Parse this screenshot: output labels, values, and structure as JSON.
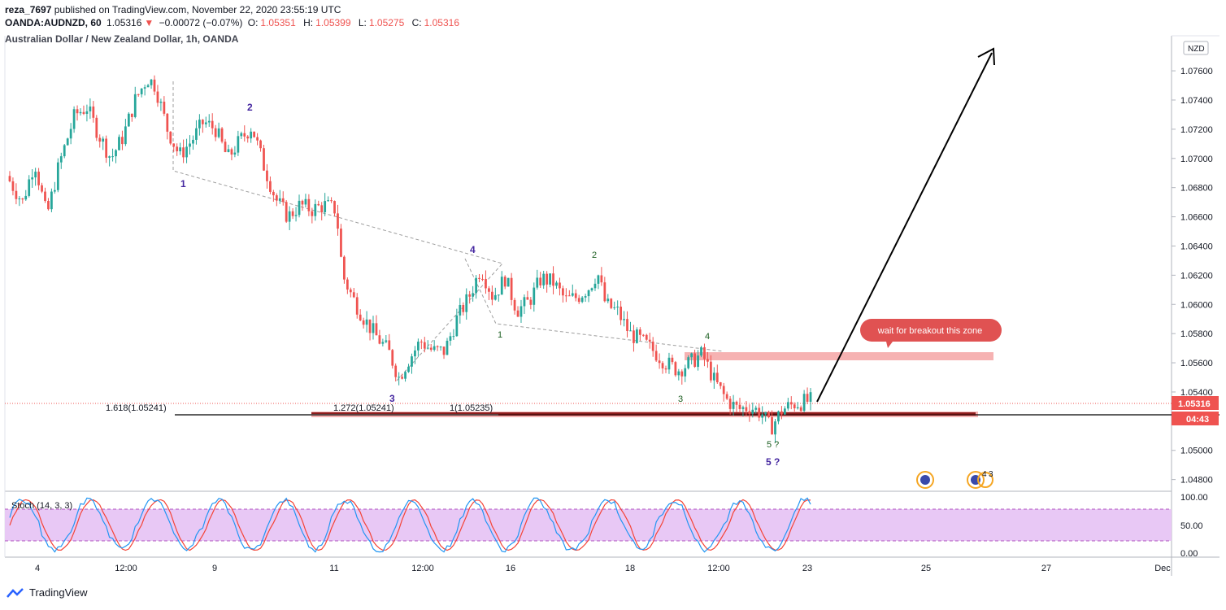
{
  "header": {
    "publisher": "reza_7697",
    "published_text": "published on TradingView.com, November 22, 2020 23:55:19 UTC",
    "symbol": "OANDA:AUDNZD, 60",
    "last": "1.05316",
    "change": "−0.00072 (−0.07%)",
    "o_label": "O:",
    "o": "1.05351",
    "h_label": "H:",
    "h": "1.05399",
    "l_label": "L:",
    "l": "1.05275",
    "c_label": "C:",
    "c": "1.05316",
    "chart_title": "Australian Dollar / New Zealand Dollar, 1h, OANDA"
  },
  "currency_badge": "NZD",
  "footer": {
    "brand": "TradingView"
  },
  "colors": {
    "up": "#26a69a",
    "down": "#ef5350",
    "zone": "#f28b8b",
    "stoch_fill": "#e1bee7",
    "k": "#2196f3",
    "d": "#f44336",
    "wave_major": "#4527a0",
    "wave_minor": "#1b5e20"
  },
  "chart_data": {
    "type": "candlestick",
    "ylim": [
      1.0472,
      1.0784
    ],
    "y_ticks": [
      "1.07600",
      "1.07400",
      "1.07200",
      "1.07000",
      "1.06800",
      "1.06600",
      "1.06400",
      "1.06200",
      "1.06000",
      "1.05800",
      "1.05600",
      "1.05400",
      "1.05000",
      "1.04800"
    ],
    "y_tick_values": [
      1.076,
      1.074,
      1.072,
      1.07,
      1.068,
      1.066,
      1.064,
      1.062,
      1.06,
      1.058,
      1.056,
      1.054,
      1.05,
      1.048
    ],
    "x_ticks": [
      "4",
      "12:00",
      "9",
      "12:00",
      "11",
      "12:00",
      "16",
      "12:00",
      "18",
      "12:00",
      "23",
      "25",
      "27",
      "Dec"
    ],
    "price_path": [
      {
        "t": 0,
        "p": 1.0688
      },
      {
        "t": 0.02,
        "p": 1.067
      },
      {
        "t": 0.035,
        "p": 1.0698
      },
      {
        "t": 0.05,
        "p": 1.066
      },
      {
        "t": 0.065,
        "p": 1.0695
      },
      {
        "t": 0.085,
        "p": 1.073
      },
      {
        "t": 0.1,
        "p": 1.0735
      },
      {
        "t": 0.115,
        "p": 1.0716
      },
      {
        "t": 0.13,
        "p": 1.07
      },
      {
        "t": 0.145,
        "p": 1.0715
      },
      {
        "t": 0.16,
        "p": 1.074
      },
      {
        "t": 0.175,
        "p": 1.0755
      },
      {
        "t": 0.185,
        "p": 1.075
      },
      {
        "t": 0.2,
        "p": 1.072
      },
      {
        "t": 0.215,
        "p": 1.0702
      },
      {
        "t": 0.23,
        "p": 1.0712
      },
      {
        "t": 0.245,
        "p": 1.0725
      },
      {
        "t": 0.26,
        "p": 1.072
      },
      {
        "t": 0.275,
        "p": 1.07
      },
      {
        "t": 0.29,
        "p": 1.0712
      },
      {
        "t": 0.305,
        "p": 1.0722
      },
      {
        "t": 0.32,
        "p": 1.0695
      },
      {
        "t": 0.335,
        "p": 1.0672
      },
      {
        "t": 0.35,
        "p": 1.066
      },
      {
        "t": 0.365,
        "p": 1.0668
      },
      {
        "t": 0.38,
        "p": 1.0665
      },
      {
        "t": 0.395,
        "p": 1.0668
      },
      {
        "t": 0.41,
        "p": 1.0665
      },
      {
        "t": 0.418,
        "p": 1.062
      },
      {
        "t": 0.43,
        "p": 1.0605
      },
      {
        "t": 0.445,
        "p": 1.059
      },
      {
        "t": 0.46,
        "p": 1.0578
      },
      {
        "t": 0.475,
        "p": 1.0568
      },
      {
        "t": 0.488,
        "p": 1.055
      },
      {
        "t": 0.5,
        "p": 1.0562
      },
      {
        "t": 0.515,
        "p": 1.0575
      },
      {
        "t": 0.53,
        "p": 1.0568
      },
      {
        "t": 0.545,
        "p": 1.0568
      },
      {
        "t": 0.56,
        "p": 1.059
      },
      {
        "t": 0.575,
        "p": 1.0605
      },
      {
        "t": 0.59,
        "p": 1.0625
      },
      {
        "t": 0.605,
        "p": 1.0605
      },
      {
        "t": 0.62,
        "p": 1.0618
      },
      {
        "t": 0.635,
        "p": 1.0596
      },
      {
        "t": 0.65,
        "p": 1.0602
      },
      {
        "t": 0.665,
        "p": 1.0618
      },
      {
        "t": 0.68,
        "p": 1.0615
      },
      {
        "t": 0.695,
        "p": 1.0603
      },
      {
        "t": 0.71,
        "p": 1.0605
      },
      {
        "t": 0.725,
        "p": 1.0612
      },
      {
        "t": 0.735,
        "p": 1.0622
      },
      {
        "t": 0.745,
        "p": 1.06
      },
      {
        "t": 0.76,
        "p": 1.0595
      },
      {
        "t": 0.775,
        "p": 1.058
      },
      {
        "t": 0.79,
        "p": 1.0575
      },
      {
        "t": 0.805,
        "p": 1.0568
      },
      {
        "t": 0.82,
        "p": 1.056
      },
      {
        "t": 0.835,
        "p": 1.0555
      },
      {
        "t": 0.85,
        "p": 1.056
      },
      {
        "t": 0.865,
        "p": 1.0566
      },
      {
        "t": 0.88,
        "p": 1.0548
      },
      {
        "t": 0.895,
        "p": 1.0535
      },
      {
        "t": 0.91,
        "p": 1.0528
      },
      {
        "t": 0.925,
        "p": 1.053
      },
      {
        "t": 0.94,
        "p": 1.0525
      },
      {
        "t": 0.95,
        "p": 1.0515
      },
      {
        "t": 0.965,
        "p": 1.0528
      },
      {
        "t": 0.98,
        "p": 1.0532
      },
      {
        "t": 1,
        "p": 1.0534
      }
    ],
    "horizontal_levels": [
      {
        "value": 1.0524,
        "label": "1.618(1.05241)"
      }
    ],
    "fib_labels": [
      "1.272(1.05241)",
      "1(1.05235)"
    ],
    "zones": [
      {
        "y_top": 1.0565,
        "y_bottom": 1.0559,
        "label": "wait for breakout this zone"
      },
      {
        "y_top": 1.0525,
        "y_bottom": 1.0522
      }
    ],
    "wave_labels_major": [
      "1",
      "2",
      "3",
      "4",
      "5 ?"
    ],
    "wave_labels_minor": [
      "1",
      "2",
      "3",
      "4",
      "5 ?"
    ],
    "price_label": "1.05316",
    "countdown": "04:43",
    "event_badges": [
      "4",
      "3"
    ],
    "indicator": {
      "name": "Stoch (14, 3, 3)",
      "y_ticks": [
        "100.00",
        "50.00",
        "0.00"
      ],
      "bands": [
        20,
        80
      ]
    }
  }
}
